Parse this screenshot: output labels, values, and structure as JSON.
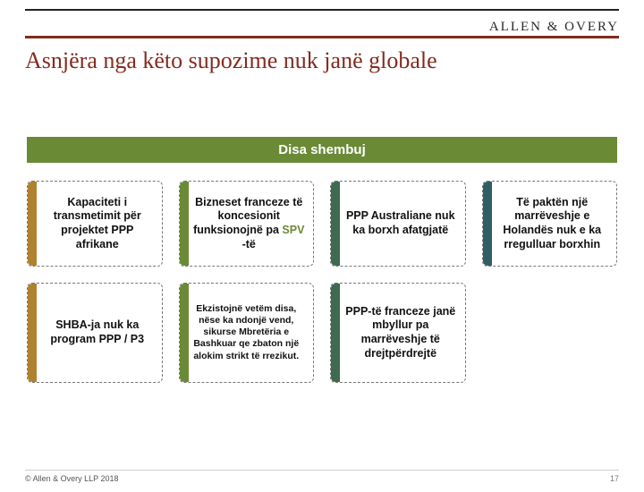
{
  "brand": "ALLEN & OVERY",
  "title": "Asnjëra nga këto supozime nuk janë globale",
  "subtitle": "Disa shembuj",
  "stripe_colors": {
    "r1c1": "#b0812f",
    "r1c2": "#6a8a36",
    "r1c3": "#3e6a4f",
    "r1c4": "#2f5f64",
    "r2c1": "#b0812f",
    "r2c2": "#6a8a36",
    "r2c3": "#3e6a4f"
  },
  "cards": {
    "r1c1": "Kapaciteti i transmetimit për projektet PPP afrikane",
    "r1c2_pre": "Bizneset franceze të koncesionit funksionojnë pa ",
    "r1c2_hl": "SPV",
    "r1c2_post": " -të",
    "r1c3": "PPP Australiane nuk ka borxh afatgjatë",
    "r1c4": "Të paktën një marrëveshje e Holandës nuk e ka rregulluar borxhin",
    "r2c1": "SHBA-ja nuk ka program PPP / P3",
    "r2c2": "Ekzistojnë vetëm disa, nëse ka ndonjë vend, sikurse Mbretëria e Bashkuar qe zbaton një alokim strikt të rrezikut.",
    "r2c3": "PPP-të franceze janë mbyllur pa marrëveshje të drejtpërdrejtë"
  },
  "footer": {
    "copyright": "© Allen & Overy LLP 2018",
    "page": "17"
  },
  "theme": {
    "accent": "#832b1f",
    "olive": "#6a8a36",
    "text": "#111111"
  }
}
